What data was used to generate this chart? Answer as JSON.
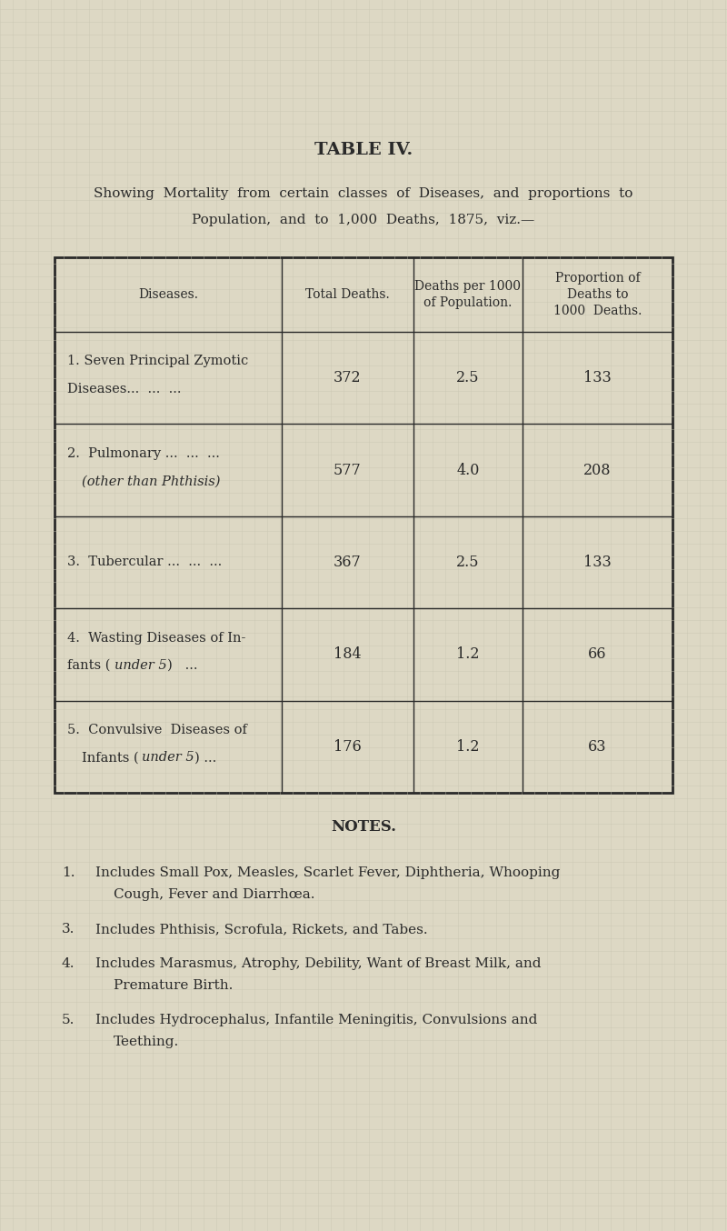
{
  "title": "TABLE IV.",
  "subtitle_line1": "Showing  Mortality  from  certain  classes  of  Diseases,  and  proportions  to",
  "subtitle_line2": "Population,  and  to  1,000  Deaths,  1875,  viz.—",
  "bg_color": "#ddd8c4",
  "grid_color": "#c8c4b0",
  "text_color": "#2a2a2a",
  "col_headers": [
    "Diseases.",
    "Total Deaths.",
    "Deaths per 1000\nof Population.",
    "Proportion of\nDeaths to\n1000  Deaths."
  ],
  "rows": [
    {
      "disease_line1": "1. Seven Principal Zymotic",
      "disease_line2": "Diseases...  ...  ...",
      "italic_line2": false,
      "total_deaths": "372",
      "deaths_per_1000": "2.5",
      "proportion": "133"
    },
    {
      "disease_line1": "2.  Pulmonary ...  ...  ...",
      "disease_line2": "(other than Phthisis)",
      "italic_line2": true,
      "total_deaths": "577",
      "deaths_per_1000": "4.0",
      "proportion": "208"
    },
    {
      "disease_line1": "3.  Tubercular ...  ...  ...",
      "disease_line2": "",
      "italic_line2": false,
      "total_deaths": "367",
      "deaths_per_1000": "2.5",
      "proportion": "133"
    },
    {
      "disease_line1": "4.  Wasting Diseases of In-",
      "disease_line2": "fants (under 5)   ...",
      "italic_line2": false,
      "italic_word": "under 5",
      "total_deaths": "184",
      "deaths_per_1000": "1.2",
      "proportion": "66"
    },
    {
      "disease_line1": "5.  Convulsive  Diseases of",
      "disease_line2": "Infants (under 5) ...",
      "italic_line2": false,
      "italic_word": "under 5",
      "total_deaths": "176",
      "deaths_per_1000": "1.2",
      "proportion": "63"
    }
  ],
  "notes_title": "NOTES.",
  "notes": [
    {
      "num": "1.",
      "line1": "Includes Small Pox, Measles, Scarlet Fever, Diphtheria, Whooping",
      "line2": "Cough, Fever and Diarrhœa."
    },
    {
      "num": "3.",
      "line1": "Includes Phthisis, Scrofula, Rickets, and Tabes.",
      "line2": ""
    },
    {
      "num": "4.",
      "line1": "Includes Marasmus, Atrophy, Debility, Want of Breast Milk, and",
      "line2": "Premature Birth."
    },
    {
      "num": "5.",
      "line1": "Includes Hydrocephalus, Infantile Meningitis, Convulsions and",
      "line2": "Teething."
    }
  ]
}
